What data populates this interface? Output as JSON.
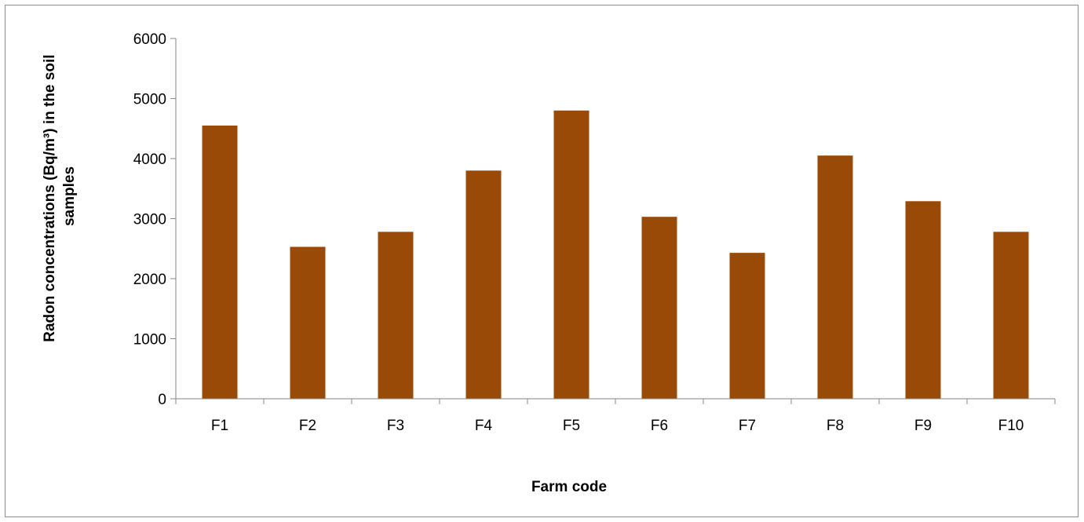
{
  "chart_data": {
    "type": "bar",
    "categories": [
      "F1",
      "F2",
      "F3",
      "F4",
      "F5",
      "F6",
      "F7",
      "F8",
      "F9",
      "F10"
    ],
    "values": [
      4550,
      2530,
      2780,
      3800,
      4800,
      3030,
      2430,
      4050,
      3290,
      2780
    ],
    "xlabel": "Farm code",
    "ylabel_lines": [
      "Radon concentrations (Bq/m³) in the soil",
      "samples"
    ],
    "ylim": [
      0,
      6000
    ],
    "yticks": [
      0,
      1000,
      2000,
      3000,
      4000,
      5000,
      6000
    ],
    "bar_color": "#9a4a07",
    "grid": false,
    "legend": "none"
  }
}
